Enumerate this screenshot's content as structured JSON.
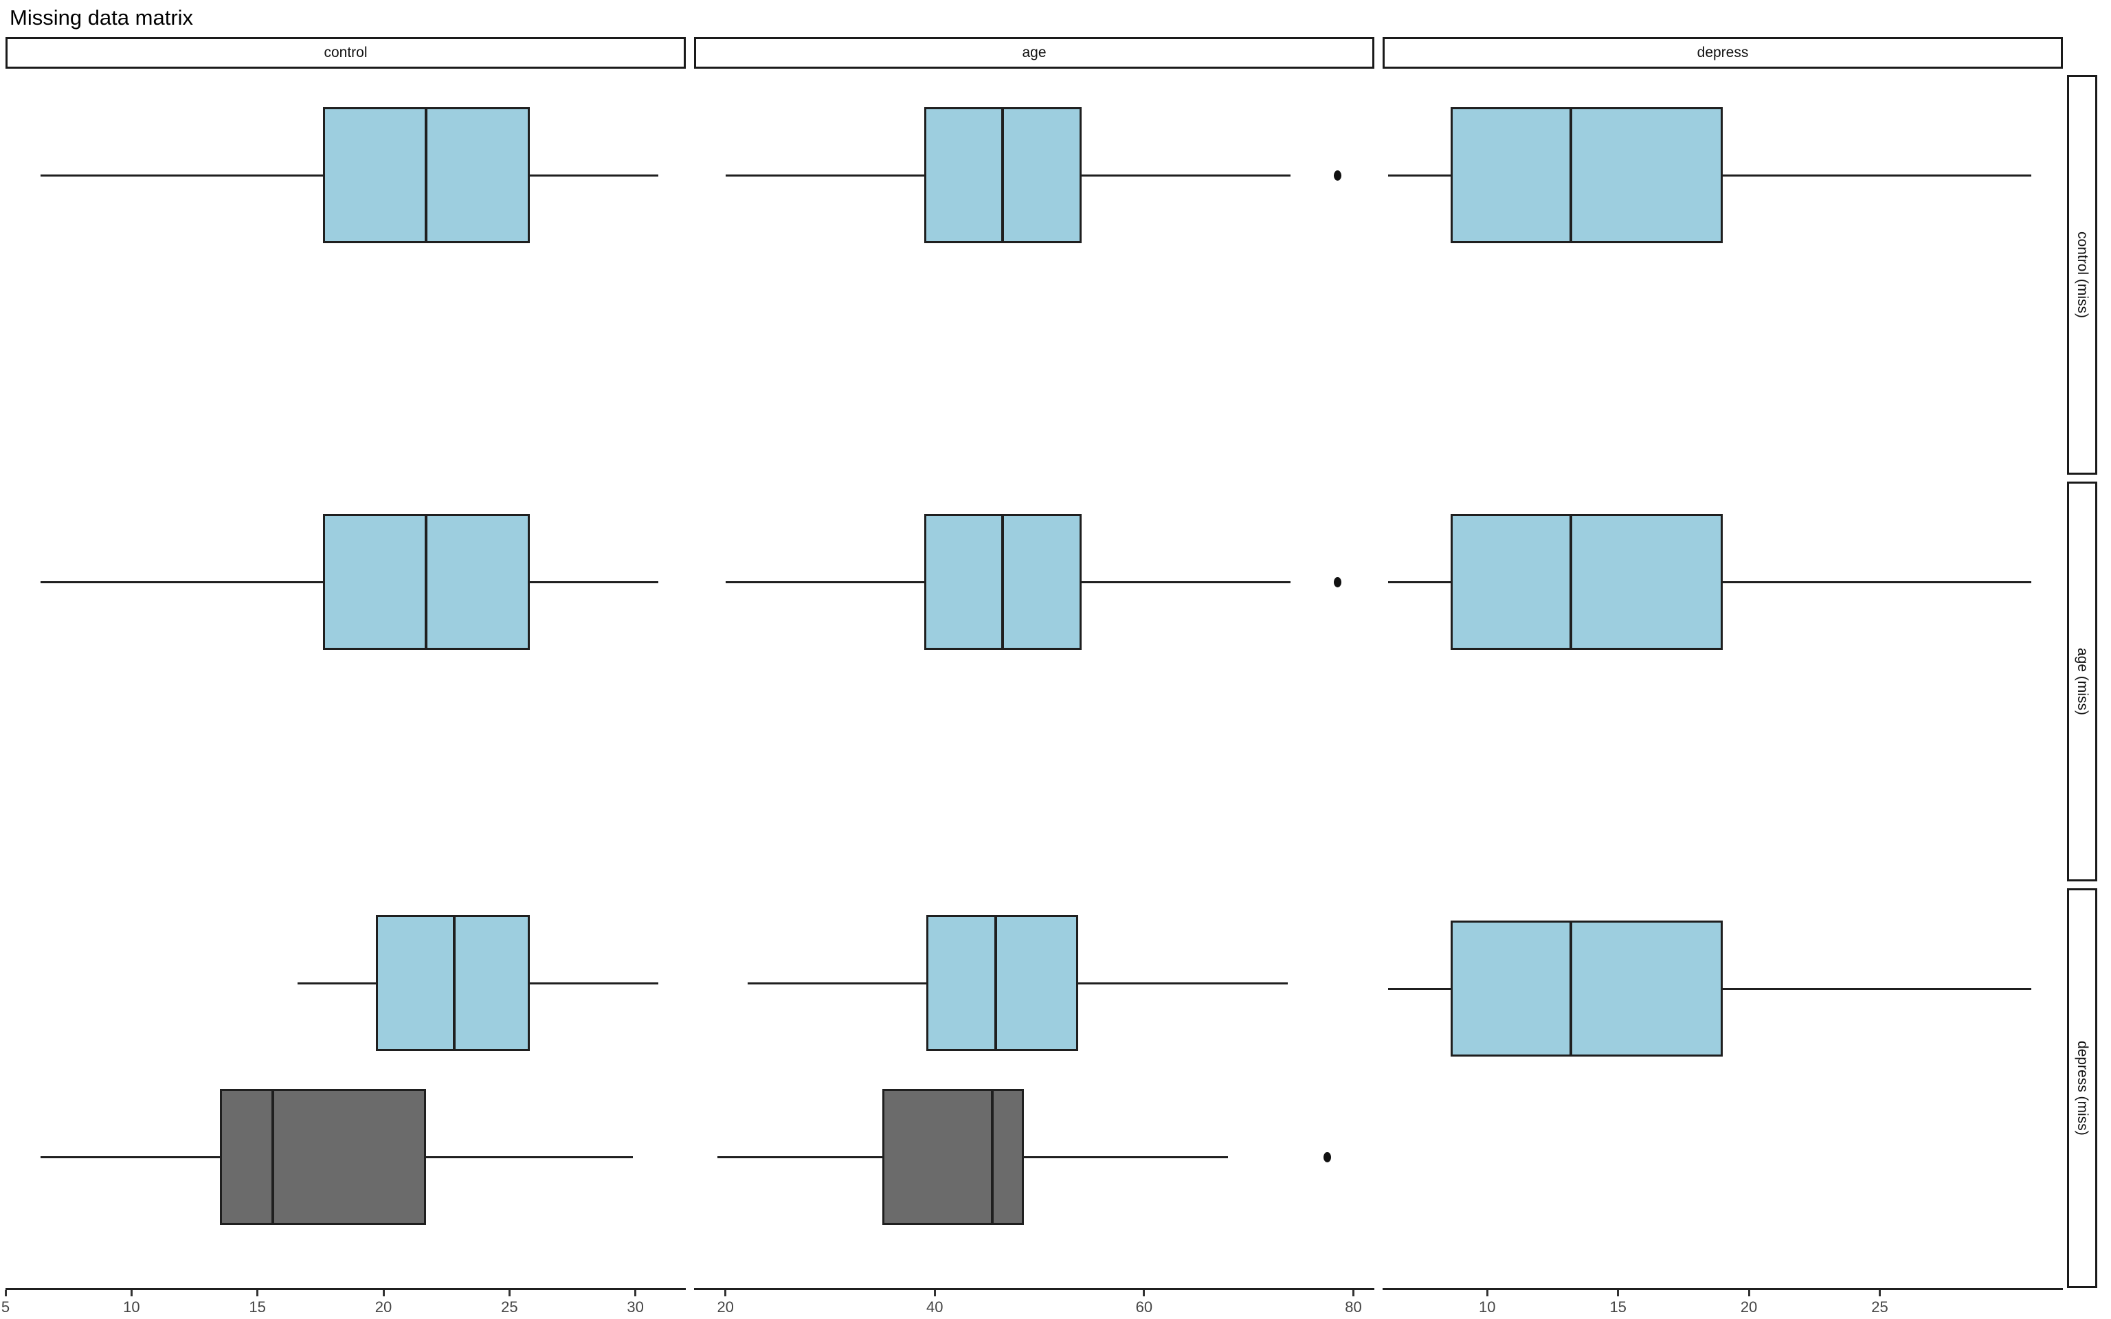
{
  "title": "Missing data matrix",
  "colors": {
    "background": "#ffffff",
    "box_border": "#1f1f1f",
    "axis_line": "#1f1f1f",
    "tick_label": "#444444",
    "strip_border": "#1a1a1a",
    "strip_background": "#ffffff",
    "observed_fill": "#9DCEDF",
    "missing_fill": "#6B6B6B",
    "outlier": "#111111"
  },
  "chart_data": {
    "type": "boxplot-matrix",
    "title": "Missing data matrix",
    "orientation": "horizontal",
    "grid": "off",
    "legend": "none",
    "group_colors": {
      "observed": "#9DCEDF",
      "missing": "#6B6B6B"
    },
    "columns": [
      {
        "label": "control",
        "axis_range": [
          5,
          32
        ],
        "ticks": [
          5,
          10,
          15,
          20,
          25,
          30
        ]
      },
      {
        "label": "age",
        "axis_range": [
          17,
          82
        ],
        "ticks": [
          20,
          40,
          60,
          80
        ]
      },
      {
        "label": "depress",
        "axis_range": [
          6,
          32
        ],
        "ticks": [
          10,
          15,
          20,
          25
        ]
      }
    ],
    "rows": [
      {
        "label": "control (miss)",
        "cells": [
          {
            "boxes": [
              {
                "group": "observed",
                "min": 6.4,
                "q1": 17.6,
                "median": 21.7,
                "q3": 25.8,
                "max": 30.9,
                "outliers": []
              }
            ]
          },
          {
            "boxes": [
              {
                "group": "observed",
                "min": 20,
                "q1": 39,
                "median": 46.5,
                "q3": 54,
                "max": 74,
                "outliers": [
                  78.5
                ]
              }
            ]
          },
          {
            "boxes": [
              {
                "group": "observed",
                "min": 6.2,
                "q1": 8.6,
                "median": 13.2,
                "q3": 19,
                "max": 30.8,
                "outliers": []
              }
            ]
          }
        ]
      },
      {
        "label": "age (miss)",
        "cells": [
          {
            "boxes": [
              {
                "group": "observed",
                "min": 6.4,
                "q1": 17.6,
                "median": 21.7,
                "q3": 25.8,
                "max": 30.9,
                "outliers": []
              }
            ]
          },
          {
            "boxes": [
              {
                "group": "observed",
                "min": 20,
                "q1": 39,
                "median": 46.5,
                "q3": 54,
                "max": 74,
                "outliers": [
                  78.5
                ]
              }
            ]
          },
          {
            "boxes": [
              {
                "group": "observed",
                "min": 6.2,
                "q1": 8.6,
                "median": 13.2,
                "q3": 19,
                "max": 30.8,
                "outliers": []
              }
            ]
          }
        ]
      },
      {
        "label": "depress (miss)",
        "cells": [
          {
            "boxes": [
              {
                "group": "observed",
                "min": 16.6,
                "q1": 19.7,
                "median": 22.8,
                "q3": 25.8,
                "max": 30.9,
                "outliers": []
              },
              {
                "group": "missing",
                "min": 6.4,
                "q1": 13.5,
                "median": 15.6,
                "q3": 21.7,
                "max": 29.9,
                "outliers": []
              }
            ]
          },
          {
            "boxes": [
              {
                "group": "observed",
                "min": 22.1,
                "q1": 39.2,
                "median": 45.8,
                "q3": 53.7,
                "max": 73.7,
                "outliers": []
              },
              {
                "group": "missing",
                "min": 19.2,
                "q1": 35,
                "median": 45.5,
                "q3": 48.5,
                "max": 68,
                "outliers": [
                  77.5
                ]
              }
            ]
          },
          {
            "boxes": [
              {
                "group": "observed",
                "min": 6.2,
                "q1": 8.6,
                "median": 13.2,
                "q3": 19,
                "max": 30.8,
                "outliers": []
              }
            ]
          }
        ]
      }
    ]
  }
}
